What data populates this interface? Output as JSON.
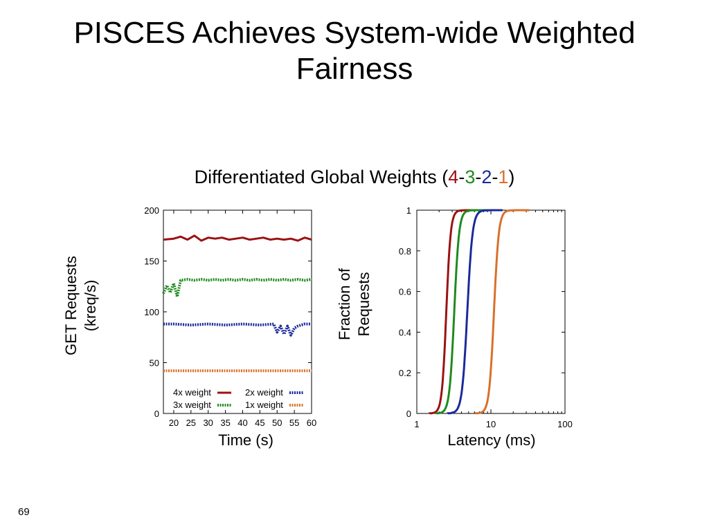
{
  "slide": {
    "title_line1": "PISCES Achieves System-wide Weighted",
    "title_line2": "Fairness",
    "subtitle_prefix": "Differentiated Global Weights (",
    "w4": "4",
    "dash1": "-",
    "w3": "3",
    "dash2": "-",
    "w2": "2",
    "dash3": "-",
    "w1": "1",
    "subtitle_suffix": ")",
    "page_number": "69"
  },
  "colors": {
    "w4": "#9b1111",
    "w3": "#1e8a1e",
    "w2": "#1a2a9a",
    "w1": "#d8702a"
  },
  "chart_data": [
    {
      "type": "line",
      "xlabel": "Time (s)",
      "ylabel_line1": "GET Requests",
      "ylabel_line2": "(kreq/s)",
      "xlim": [
        17,
        60
      ],
      "ylim": [
        0,
        200
      ],
      "xticks": [
        20,
        25,
        30,
        35,
        40,
        45,
        50,
        55,
        60
      ],
      "yticks": [
        0,
        50,
        100,
        150,
        200
      ],
      "legend_position": "bottom",
      "series": [
        {
          "name": "4x weight",
          "color": "#9b1111",
          "style": "solid",
          "x": [
            17,
            20,
            22,
            24,
            26,
            28,
            30,
            32,
            34,
            36,
            38,
            40,
            42,
            44,
            46,
            48,
            50,
            52,
            54,
            56,
            58,
            60
          ],
          "y": [
            171,
            172,
            174,
            171,
            175,
            170,
            173,
            172,
            173,
            171,
            172,
            173,
            171,
            172,
            173,
            171,
            172,
            171,
            172,
            170,
            173,
            171
          ]
        },
        {
          "name": "3x weight",
          "color": "#1e8a1e",
          "style": "dotted",
          "x": [
            17,
            18,
            19,
            20,
            21,
            22,
            24,
            26,
            28,
            30,
            32,
            34,
            36,
            38,
            40,
            42,
            44,
            46,
            48,
            50,
            52,
            54,
            56,
            58,
            60
          ],
          "y": [
            118,
            126,
            119,
            128,
            115,
            131,
            132,
            131,
            132,
            131,
            132,
            131,
            132,
            131,
            132,
            131,
            132,
            131,
            132,
            131,
            132,
            131,
            132,
            131,
            132
          ]
        },
        {
          "name": "2x weight",
          "color": "#1a2a9a",
          "style": "dotted",
          "x": [
            17,
            20,
            25,
            30,
            35,
            40,
            45,
            49,
            50,
            51,
            52,
            53,
            54,
            55,
            56,
            58,
            60
          ],
          "y": [
            88,
            88,
            87,
            88,
            87,
            88,
            87,
            88,
            80,
            86,
            78,
            86,
            77,
            84,
            86,
            88,
            88
          ]
        },
        {
          "name": "1x weight",
          "color": "#d8702a",
          "style": "dotted",
          "x": [
            17,
            20,
            25,
            30,
            35,
            40,
            45,
            50,
            55,
            60
          ],
          "y": [
            42,
            42,
            42,
            42,
            42,
            42,
            42,
            42,
            42,
            42
          ]
        }
      ]
    },
    {
      "type": "line",
      "xscale": "log",
      "xlabel": "Latency (ms)",
      "ylabel_line1": "Fraction of",
      "ylabel_line2": "Requests",
      "xlim": [
        1,
        100
      ],
      "ylim": [
        0,
        1
      ],
      "xticks": [
        1,
        10,
        100
      ],
      "yticks": [
        0,
        0.2,
        0.4,
        0.6,
        0.8,
        1
      ],
      "series": [
        {
          "color": "#9b1111",
          "median": 2.5,
          "spread": 0.05
        },
        {
          "color": "#1e8a1e",
          "median": 3.2,
          "spread": 0.055
        },
        {
          "color": "#1a2a9a",
          "median": 4.8,
          "spread": 0.06
        },
        {
          "color": "#d8702a",
          "median": 11.0,
          "spread": 0.055
        }
      ]
    }
  ]
}
